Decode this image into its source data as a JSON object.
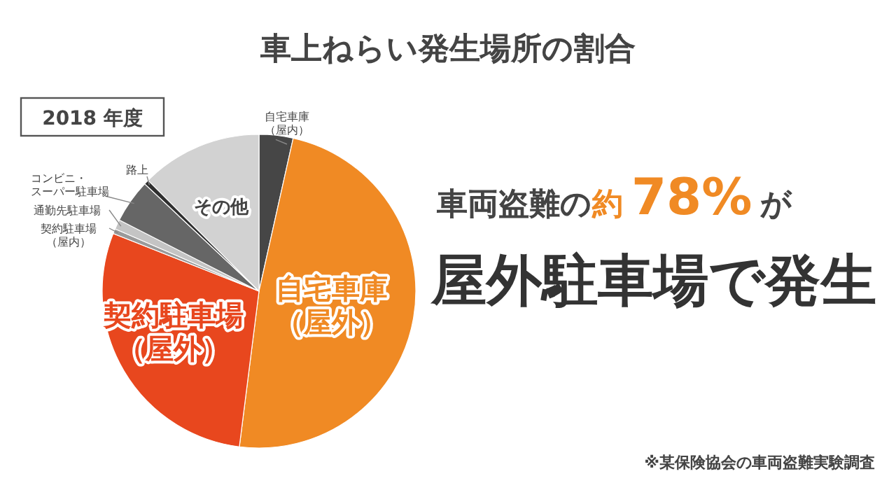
{
  "chart_data": {
    "type": "pie",
    "title": "車上ねらい発生場所の割合",
    "categories": [
      "自宅車庫（屋内）",
      "自宅車庫（屋外）",
      "契約駐車場（屋外）",
      "契約駐車場（屋内）",
      "通勤先駐車場",
      "コンビニ・スーパー駐車場",
      "路上",
      "その他"
    ],
    "values": [
      3.5,
      48.5,
      29,
      0.5,
      1,
      4.5,
      0.5,
      12.5
    ],
    "colors": [
      "#464646",
      "#f08a24",
      "#e8471e",
      "#9a9a9a",
      "#c4c4c4",
      "#666666",
      "#2e2e2e",
      "#d2d2d2"
    ],
    "annotations": [
      "2018 年度",
      "車両盗難の",
      "約",
      "78%",
      "が",
      "屋外駐車場で発生",
      "※某保険協会の車両盗難実験調査"
    ]
  }
}
